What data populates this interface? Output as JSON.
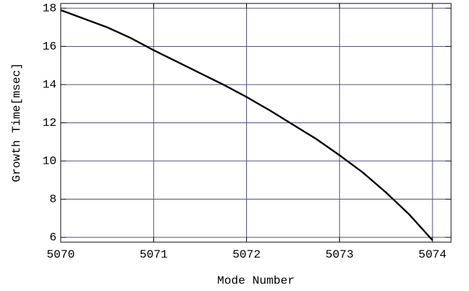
{
  "chart_data": {
    "type": "line",
    "x_label": "Mode Number",
    "y_label": "Growth Time[msec]",
    "x": [
      5070,
      5070.25,
      5070.5,
      5070.75,
      5071,
      5071.25,
      5071.5,
      5071.75,
      5072,
      5072.25,
      5072.5,
      5072.75,
      5073,
      5073.25,
      5073.5,
      5073.75,
      5074
    ],
    "series": [
      {
        "color": "#000000",
        "values": [
          17.9,
          17.45,
          17.0,
          16.45,
          15.8,
          15.2,
          14.6,
          14.0,
          13.35,
          12.65,
          11.9,
          11.15,
          10.3,
          9.4,
          8.35,
          7.2,
          5.85
        ]
      }
    ],
    "xlim": [
      5070,
      5074.2
    ],
    "ylim": [
      5.75,
      18.25
    ],
    "xticks": [
      5070,
      5071,
      5072,
      5073,
      5074
    ],
    "yticks": [
      6,
      8,
      10,
      12,
      14,
      16,
      18
    ],
    "grid": true
  }
}
